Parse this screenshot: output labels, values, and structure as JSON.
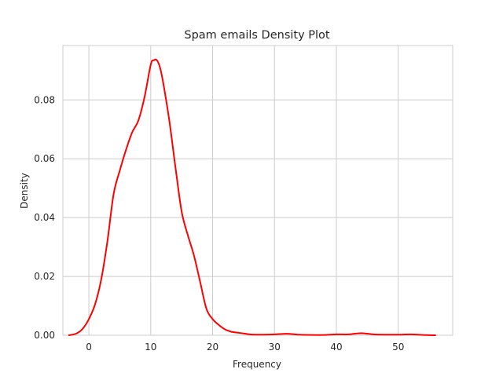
{
  "chart_data": {
    "type": "line",
    "title": "Spam emails Density Plot",
    "xlabel": "Frequency",
    "ylabel": "Density",
    "xlim": [
      -4.2,
      58.8
    ],
    "ylim": [
      0,
      0.0985
    ],
    "xticks": [
      0,
      10,
      20,
      30,
      40,
      50
    ],
    "xtick_labels": [
      "0",
      "10",
      "20",
      "30",
      "40",
      "50"
    ],
    "yticks": [
      0,
      0.02,
      0.04,
      0.06,
      0.08
    ],
    "ytick_labels": [
      "0.00",
      "0.02",
      "0.04",
      "0.06",
      "0.08"
    ],
    "grid": true,
    "legend": "none",
    "line_color": "#ff0000",
    "series": [
      {
        "x": [
          -3.2,
          -2,
          -1,
          0,
          1,
          2,
          3,
          4,
          5,
          6,
          7,
          8,
          9,
          10,
          10.5,
          11,
          11.5,
          12,
          13,
          14,
          15,
          16,
          17,
          18,
          19,
          20,
          21,
          22,
          23,
          24,
          25,
          26,
          27,
          28,
          30,
          32,
          34,
          36,
          38,
          40,
          42,
          44,
          46,
          48,
          50,
          52,
          54,
          56
        ],
        "y": [
          0.0,
          0.0006,
          0.0022,
          0.0055,
          0.0105,
          0.019,
          0.032,
          0.048,
          0.056,
          0.063,
          0.069,
          0.073,
          0.081,
          0.092,
          0.0935,
          0.0935,
          0.091,
          0.086,
          0.073,
          0.057,
          0.042,
          0.034,
          0.027,
          0.018,
          0.009,
          0.0055,
          0.0035,
          0.002,
          0.0012,
          0.0009,
          0.0006,
          0.0003,
          0.0002,
          0.0002,
          0.0003,
          0.0005,
          0.0002,
          0.0001,
          0.0001,
          0.0003,
          0.0003,
          0.0007,
          0.0003,
          0.0002,
          0.0002,
          0.0003,
          0.0001,
          0.0
        ]
      }
    ]
  }
}
